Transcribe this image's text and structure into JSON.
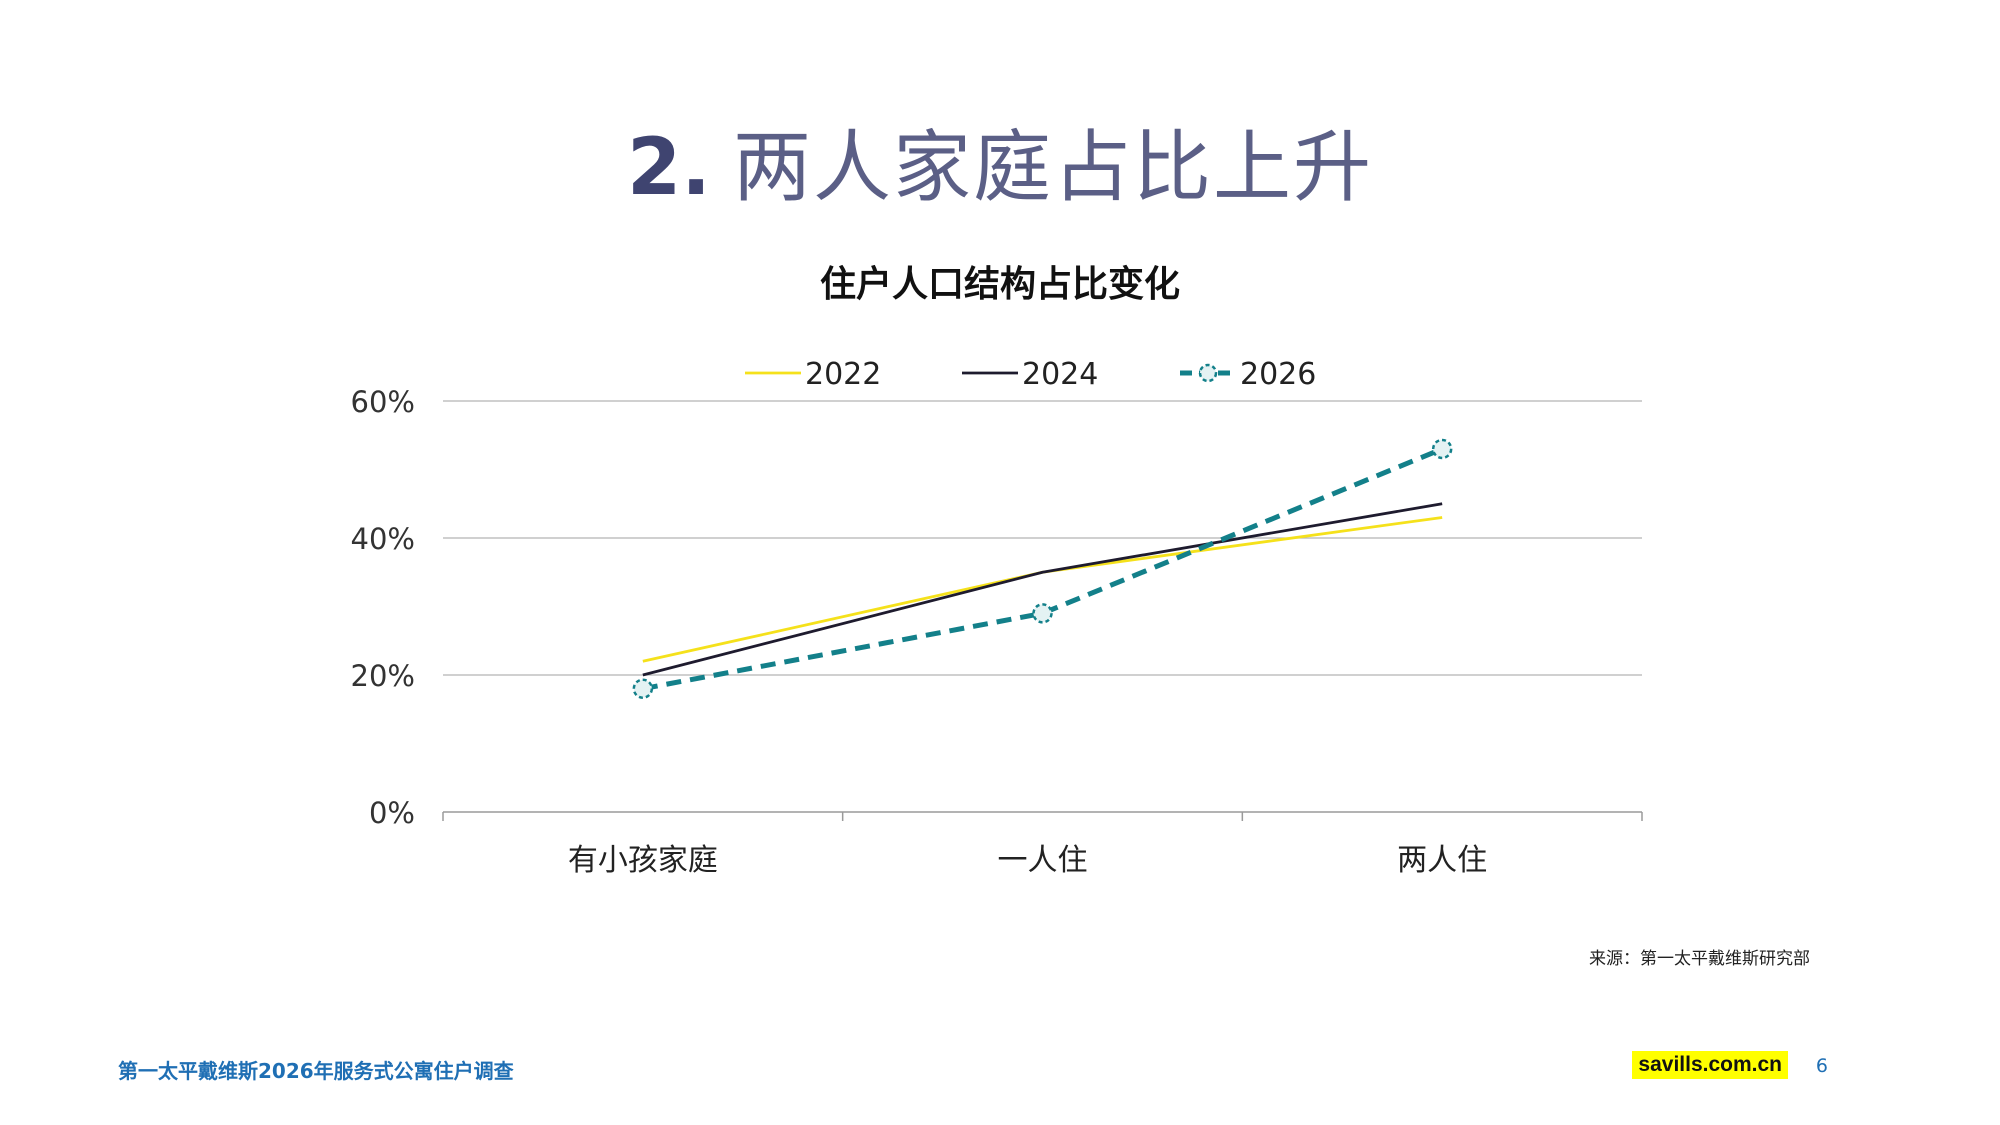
{
  "slide": {
    "title_number": "2.",
    "title_text": "两人家庭占比上升"
  },
  "chart_data": {
    "type": "line",
    "title": "住户人口结构占比变化",
    "categories": [
      "有小孩家庭",
      "一人住",
      "两人住"
    ],
    "series": [
      {
        "name": "2022",
        "values": [
          22,
          35,
          43
        ],
        "color": "#f5e11b",
        "style": "solid"
      },
      {
        "name": "2024",
        "values": [
          20,
          35,
          45
        ],
        "color": "#1e1b2e",
        "style": "solid"
      },
      {
        "name": "2026",
        "values": [
          18,
          29,
          53
        ],
        "color": "#13808a",
        "style": "dashed-markers"
      }
    ],
    "ylim": [
      0,
      60
    ],
    "yticks": [
      0,
      20,
      40,
      60
    ],
    "ytick_labels": [
      "0%",
      "20%",
      "40%",
      "60%"
    ],
    "grid": true,
    "legend_position": "top-center",
    "xlabel": "",
    "ylabel": ""
  },
  "source": "来源：第一太平戴维斯研究部",
  "footer": {
    "report_title": "第一太平戴维斯2026年服务式公寓住户调查",
    "brand": "savills.com.cn",
    "page_number": "6"
  }
}
